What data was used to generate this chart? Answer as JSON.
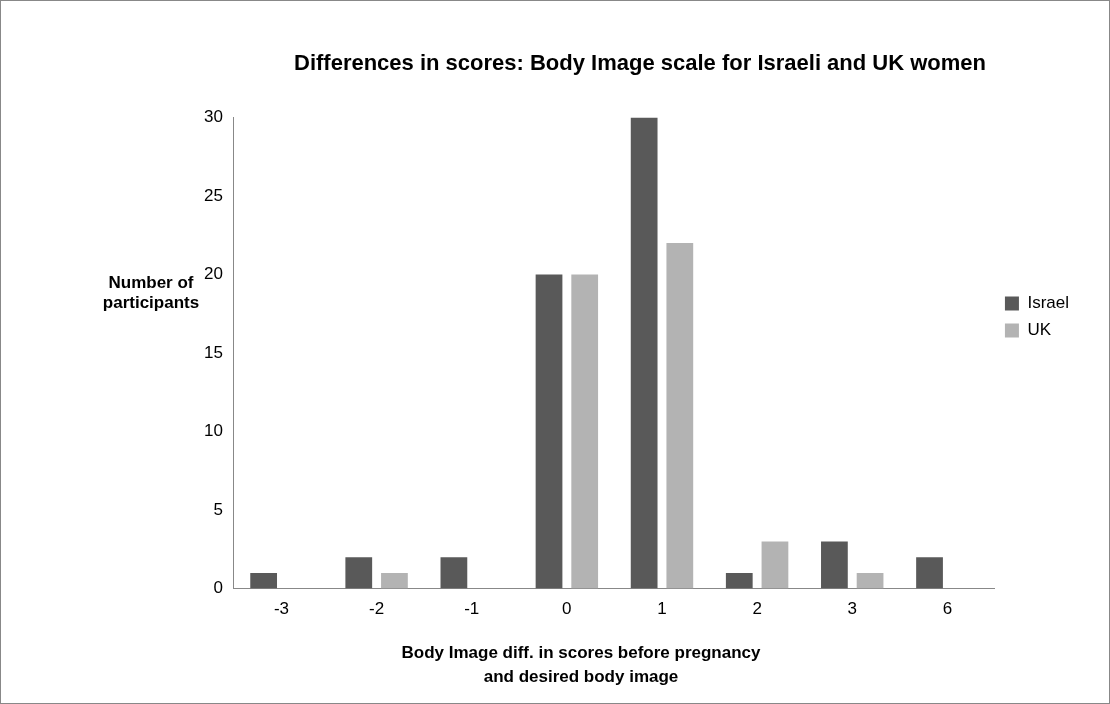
{
  "chart_data": {
    "type": "bar",
    "title": "Differences in scores: Body Image scale for Israeli and UK women",
    "xlabel": "Body Image diff. in scores before pregnancy and desired body image",
    "ylabel": "Number of participants",
    "categories": [
      "-3",
      "-2",
      "-1",
      "0",
      "1",
      "2",
      "3",
      "6"
    ],
    "series": [
      {
        "name": "Israel",
        "color": "#595959",
        "values": [
          1,
          2,
          2,
          20,
          30,
          1,
          3,
          2
        ]
      },
      {
        "name": "UK",
        "color": "#b3b3b3",
        "values": [
          0,
          1,
          0,
          20,
          22,
          3,
          1,
          0
        ]
      }
    ],
    "ylim": [
      0,
      30
    ],
    "yticks": [
      0,
      5,
      10,
      15,
      20,
      25,
      30
    ],
    "grid": false,
    "legend": "right"
  }
}
